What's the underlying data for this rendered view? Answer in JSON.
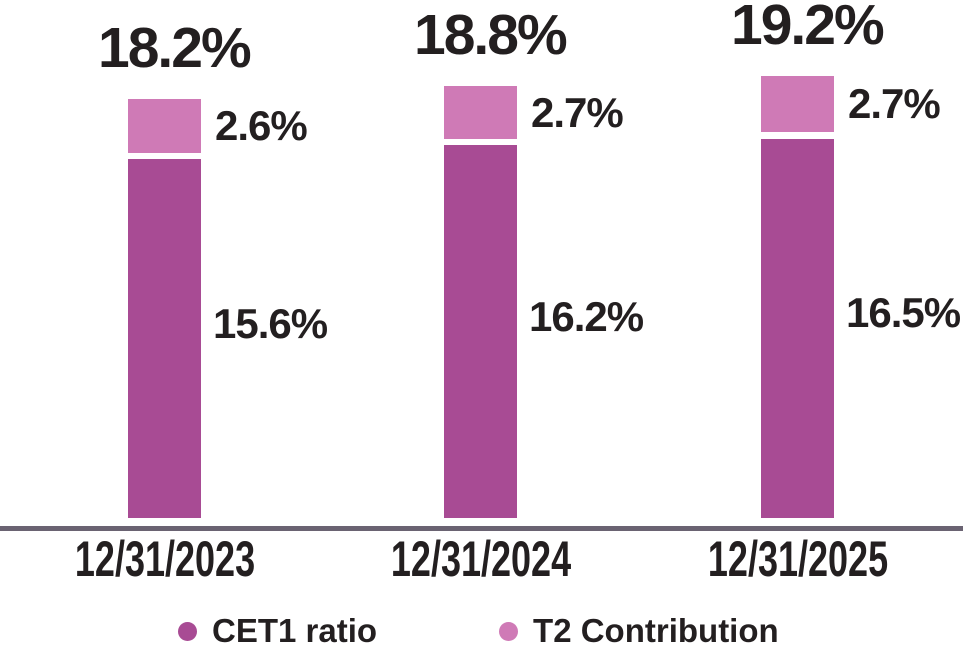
{
  "colors": {
    "cet1": "#a84b94",
    "t2": "#cf7ab6",
    "axis": "#6a6372",
    "text": "#231f20",
    "background": "#ffffff",
    "segment_gap": "#ffffff"
  },
  "chart_data": {
    "type": "bar",
    "subtype": "stacked",
    "title": "",
    "xlabel": "",
    "ylabel": "",
    "ylim": [
      0,
      20
    ],
    "grid": false,
    "legend_position": "bottom",
    "categories": [
      "12/31/2023",
      "12/31/2024",
      "12/31/2025"
    ],
    "series": [
      {
        "name": "CET1 ratio",
        "color": "#a84b94",
        "values": [
          15.6,
          16.2,
          16.5
        ],
        "labels": [
          "15.6%",
          "16.2%",
          "16.5%"
        ]
      },
      {
        "name": "T2 Contribution",
        "color": "#cf7ab6",
        "values": [
          2.6,
          2.7,
          2.7
        ],
        "labels": [
          "2.6%",
          "2.7%",
          "2.7%"
        ]
      }
    ],
    "totals": {
      "values": [
        18.2,
        18.8,
        19.2
      ],
      "labels": [
        "18.2%",
        "18.8%",
        "19.2%"
      ]
    }
  },
  "legend": {
    "items": [
      {
        "label": "CET1 ratio",
        "color": "#a84b94"
      },
      {
        "label": "T2 Contribution",
        "color": "#cf7ab6"
      }
    ]
  }
}
